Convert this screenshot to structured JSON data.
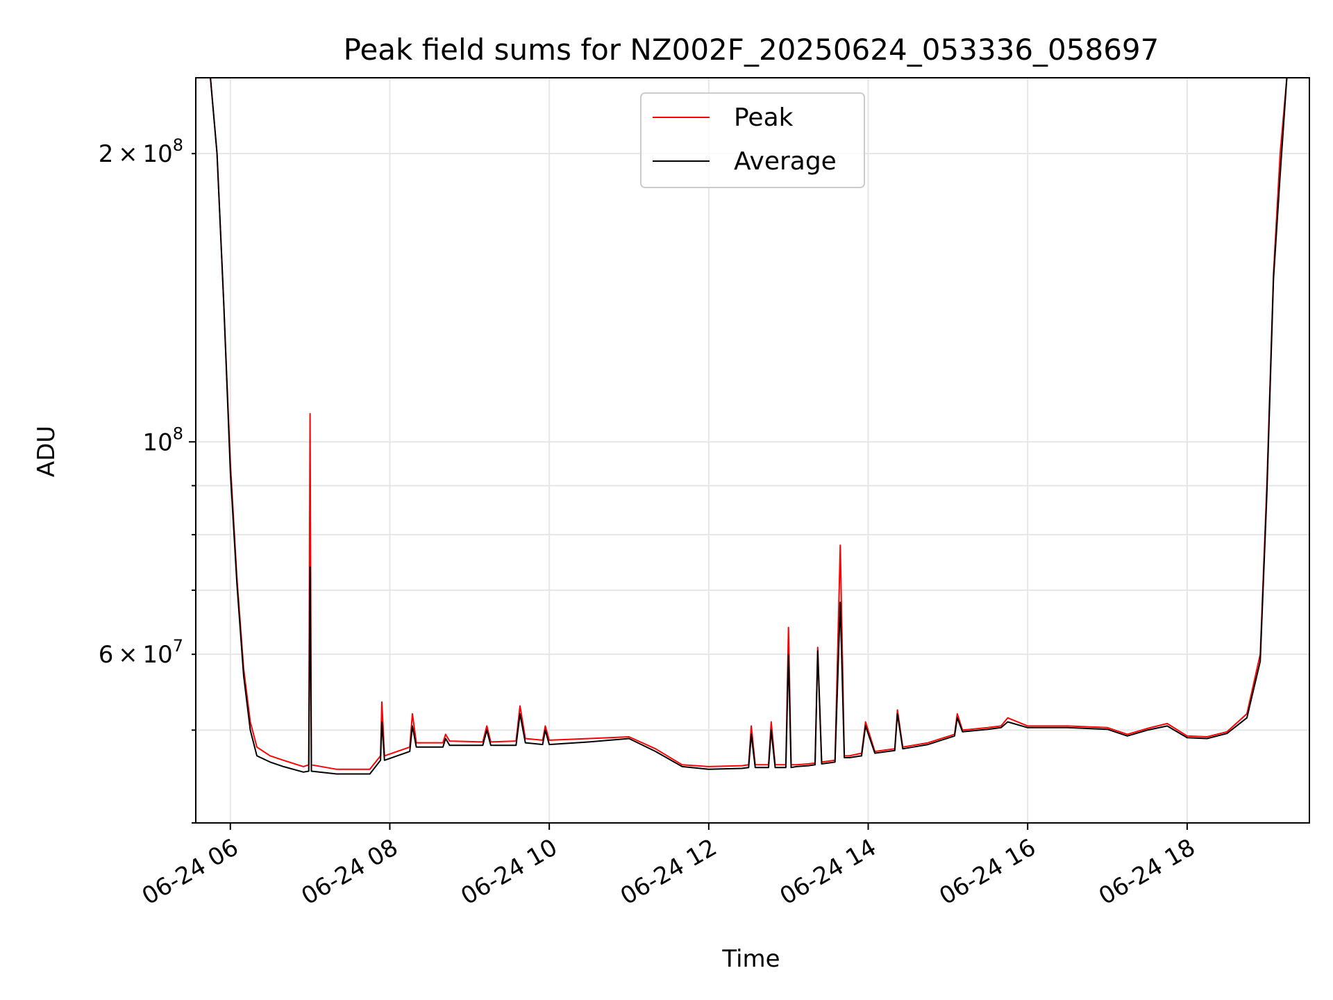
{
  "chart_data": {
    "type": "line",
    "title": "Peak field sums for NZ002F_20250624_053336_058697",
    "xlabel": "Time",
    "ylabel": "ADU",
    "yscale": "log",
    "xlim": [
      "2025-06-24T05:34",
      "2025-06-24T19:32"
    ],
    "ylim": [
      40000000,
      240000000
    ],
    "xticks": [
      "06-24 06",
      "06-24 08",
      "06-24 10",
      "06-24 12",
      "06-24 14",
      "06-24 16",
      "06-24 18"
    ],
    "ytick_labels": [
      {
        "value": 200000000,
        "base": "2",
        "times": "×",
        "ten": "10",
        "exp": "8"
      },
      {
        "value": 100000000,
        "base": "",
        "times": "",
        "ten": "10",
        "exp": "8"
      },
      {
        "value": 60000000,
        "base": "6",
        "times": "×",
        "ten": "10",
        "exp": "7"
      }
    ],
    "grid": true,
    "legend": "upper center",
    "series": [
      {
        "name": "Peak",
        "color": "#ff0000",
        "x": [
          "2025-06-24T05:45",
          "2025-06-24T05:50",
          "2025-06-24T05:55",
          "2025-06-24T06:00",
          "2025-06-24T06:05",
          "2025-06-24T06:10",
          "2025-06-24T06:15",
          "2025-06-24T06:20",
          "2025-06-24T06:30",
          "2025-06-24T06:40",
          "2025-06-24T06:55",
          "2025-06-24T06:59",
          "2025-06-24T07:00",
          "2025-06-24T07:01",
          "2025-06-24T07:20",
          "2025-06-24T07:45",
          "2025-06-24T07:53",
          "2025-06-24T07:54",
          "2025-06-24T07:56",
          "2025-06-24T08:15",
          "2025-06-24T08:17",
          "2025-06-24T08:20",
          "2025-06-24T08:40",
          "2025-06-24T08:42",
          "2025-06-24T08:45",
          "2025-06-24T09:10",
          "2025-06-24T09:13",
          "2025-06-24T09:16",
          "2025-06-24T09:35",
          "2025-06-24T09:38",
          "2025-06-24T09:42",
          "2025-06-24T09:55",
          "2025-06-24T09:57",
          "2025-06-24T10:00",
          "2025-06-24T10:30",
          "2025-06-24T11:00",
          "2025-06-24T11:20",
          "2025-06-24T11:40",
          "2025-06-24T12:00",
          "2025-06-24T12:25",
          "2025-06-24T12:30",
          "2025-06-24T12:32",
          "2025-06-24T12:35",
          "2025-06-24T12:45",
          "2025-06-24T12:47",
          "2025-06-24T12:50",
          "2025-06-24T12:58",
          "2025-06-24T13:00",
          "2025-06-24T13:02",
          "2025-06-24T13:06",
          "2025-06-24T13:15",
          "2025-06-24T13:20",
          "2025-06-24T13:22",
          "2025-06-24T13:25",
          "2025-06-24T13:35",
          "2025-06-24T13:39",
          "2025-06-24T13:42",
          "2025-06-24T13:46",
          "2025-06-24T13:55",
          "2025-06-24T13:58",
          "2025-06-24T14:05",
          "2025-06-24T14:20",
          "2025-06-24T14:22",
          "2025-06-24T14:26",
          "2025-06-24T14:45",
          "2025-06-24T15:05",
          "2025-06-24T15:07",
          "2025-06-24T15:11",
          "2025-06-24T15:30",
          "2025-06-24T15:40",
          "2025-06-24T15:45",
          "2025-06-24T16:00",
          "2025-06-24T16:30",
          "2025-06-24T17:00",
          "2025-06-24T17:15",
          "2025-06-24T17:30",
          "2025-06-24T17:45",
          "2025-06-24T18:00",
          "2025-06-24T18:15",
          "2025-06-24T18:30",
          "2025-06-24T18:45",
          "2025-06-24T18:55",
          "2025-06-24T19:00",
          "2025-06-24T19:05",
          "2025-06-24T19:10",
          "2025-06-24T19:15",
          "2025-06-24T19:18",
          "2025-06-24T19:20"
        ],
        "y": [
          240000000,
          200000000,
          140000000,
          95000000,
          72000000,
          58000000,
          51000000,
          48000000,
          47000000,
          46500000,
          45800000,
          46000000,
          107000000,
          46000000,
          45500000,
          45500000,
          47000000,
          53500000,
          47000000,
          48000000,
          52000000,
          48500000,
          48500000,
          49500000,
          48700000,
          48600000,
          50500000,
          48600000,
          48700000,
          53000000,
          49000000,
          48800000,
          50500000,
          48800000,
          49000000,
          49200000,
          47800000,
          46000000,
          45800000,
          45900000,
          46000000,
          50500000,
          46000000,
          46000000,
          51000000,
          46000000,
          46000000,
          64000000,
          46000000,
          46000000,
          46100000,
          46200000,
          61000000,
          46300000,
          46500000,
          78000000,
          47000000,
          47000000,
          47300000,
          51000000,
          47500000,
          47800000,
          52500000,
          48000000,
          48500000,
          49500000,
          52000000,
          50000000,
          50300000,
          50500000,
          51500000,
          50500000,
          50500000,
          50300000,
          49500000,
          50200000,
          50800000,
          49300000,
          49200000,
          49800000,
          52000000,
          60000000,
          90000000,
          150000000,
          200000000,
          240000000,
          240000000,
          240000000
        ]
      },
      {
        "name": "Average",
        "color": "#000000",
        "x": [
          "2025-06-24T05:45",
          "2025-06-24T05:50",
          "2025-06-24T05:55",
          "2025-06-24T06:00",
          "2025-06-24T06:05",
          "2025-06-24T06:10",
          "2025-06-24T06:15",
          "2025-06-24T06:20",
          "2025-06-24T06:30",
          "2025-06-24T06:40",
          "2025-06-24T06:55",
          "2025-06-24T06:59",
          "2025-06-24T07:00",
          "2025-06-24T07:01",
          "2025-06-24T07:20",
          "2025-06-24T07:45",
          "2025-06-24T07:53",
          "2025-06-24T07:54",
          "2025-06-24T07:56",
          "2025-06-24T08:15",
          "2025-06-24T08:17",
          "2025-06-24T08:20",
          "2025-06-24T08:40",
          "2025-06-24T08:42",
          "2025-06-24T08:45",
          "2025-06-24T09:10",
          "2025-06-24T09:13",
          "2025-06-24T09:16",
          "2025-06-24T09:35",
          "2025-06-24T09:38",
          "2025-06-24T09:42",
          "2025-06-24T09:55",
          "2025-06-24T09:57",
          "2025-06-24T10:00",
          "2025-06-24T10:30",
          "2025-06-24T11:00",
          "2025-06-24T11:20",
          "2025-06-24T11:40",
          "2025-06-24T12:00",
          "2025-06-24T12:25",
          "2025-06-24T12:30",
          "2025-06-24T12:32",
          "2025-06-24T12:35",
          "2025-06-24T12:45",
          "2025-06-24T12:47",
          "2025-06-24T12:50",
          "2025-06-24T12:58",
          "2025-06-24T13:00",
          "2025-06-24T13:02",
          "2025-06-24T13:06",
          "2025-06-24T13:15",
          "2025-06-24T13:20",
          "2025-06-24T13:22",
          "2025-06-24T13:25",
          "2025-06-24T13:35",
          "2025-06-24T13:39",
          "2025-06-24T13:42",
          "2025-06-24T13:46",
          "2025-06-24T13:55",
          "2025-06-24T13:58",
          "2025-06-24T14:05",
          "2025-06-24T14:20",
          "2025-06-24T14:22",
          "2025-06-24T14:26",
          "2025-06-24T14:45",
          "2025-06-24T15:05",
          "2025-06-24T15:07",
          "2025-06-24T15:11",
          "2025-06-24T15:30",
          "2025-06-24T15:40",
          "2025-06-24T15:45",
          "2025-06-24T16:00",
          "2025-06-24T16:30",
          "2025-06-24T17:00",
          "2025-06-24T17:15",
          "2025-06-24T17:30",
          "2025-06-24T17:45",
          "2025-06-24T18:00",
          "2025-06-24T18:15",
          "2025-06-24T18:30",
          "2025-06-24T18:45",
          "2025-06-24T18:55",
          "2025-06-24T19:00",
          "2025-06-24T19:05",
          "2025-06-24T19:10",
          "2025-06-24T19:15",
          "2025-06-24T19:18",
          "2025-06-24T19:20"
        ],
        "y": [
          240000000,
          200000000,
          140000000,
          93000000,
          71000000,
          57000000,
          50000000,
          47000000,
          46300000,
          45800000,
          45200000,
          45300000,
          74000000,
          45300000,
          45000000,
          45000000,
          46500000,
          51000000,
          46500000,
          47500000,
          50500000,
          48000000,
          48000000,
          49000000,
          48200000,
          48200000,
          50000000,
          48200000,
          48200000,
          52000000,
          48500000,
          48300000,
          50000000,
          48300000,
          48600000,
          49000000,
          47500000,
          45800000,
          45500000,
          45600000,
          45700000,
          49500000,
          45700000,
          45700000,
          50000000,
          45700000,
          45700000,
          60000000,
          45700000,
          45800000,
          45900000,
          46000000,
          60500000,
          46100000,
          46300000,
          68000000,
          46800000,
          46800000,
          47000000,
          50500000,
          47300000,
          47600000,
          52000000,
          47800000,
          48300000,
          49300000,
          51500000,
          49800000,
          50100000,
          50300000,
          51000000,
          50300000,
          50300000,
          50100000,
          49300000,
          50000000,
          50500000,
          49100000,
          49000000,
          49600000,
          51500000,
          59000000,
          88000000,
          148000000,
          190000000,
          240000000,
          240000000,
          240000000
        ]
      }
    ]
  }
}
